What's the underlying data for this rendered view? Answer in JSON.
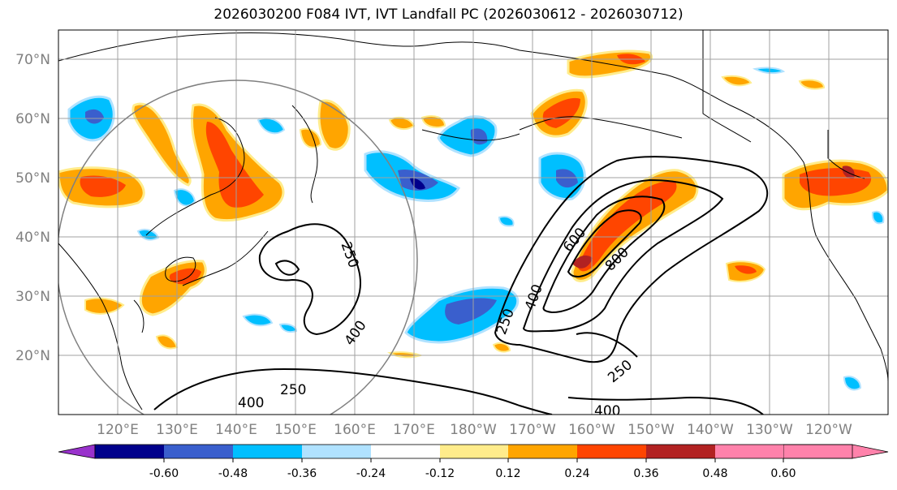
{
  "title": "2026030200 F084 IVT, IVT Landfall PC (2026030612 - 2026030712)",
  "lat_labels": [
    "70°N",
    "60°N",
    "50°N",
    "40°N",
    "30°N",
    "20°N"
  ],
  "lon_labels": [
    "120°E",
    "130°E",
    "140°E",
    "150°E",
    "160°E",
    "170°E",
    "180°W",
    "170°W",
    "160°W",
    "150°W",
    "140°W",
    "130°W",
    "120°W"
  ],
  "contour_labels": [
    "250",
    "400",
    "250",
    "400",
    "600",
    "800",
    "250",
    "250",
    "400",
    "400"
  ],
  "colorbar": {
    "colors": [
      "#9932cc",
      "#00008b",
      "#3a5fcd",
      "#00bfff",
      "#b0e2ff",
      "#ffffff",
      "#ffec8b",
      "#ffa500",
      "#ff4500",
      "#b22222",
      "#ff82ab"
    ],
    "tick_labels": [
      "-0.60",
      "-0.48",
      "-0.36",
      "-0.24",
      "-0.12",
      "0.12",
      "0.24",
      "0.36",
      "0.48",
      "0.60"
    ]
  },
  "colors": {
    "grid": "#a0a0a0",
    "coast": "#000000",
    "contour": "#000000",
    "circle": "#808080"
  }
}
